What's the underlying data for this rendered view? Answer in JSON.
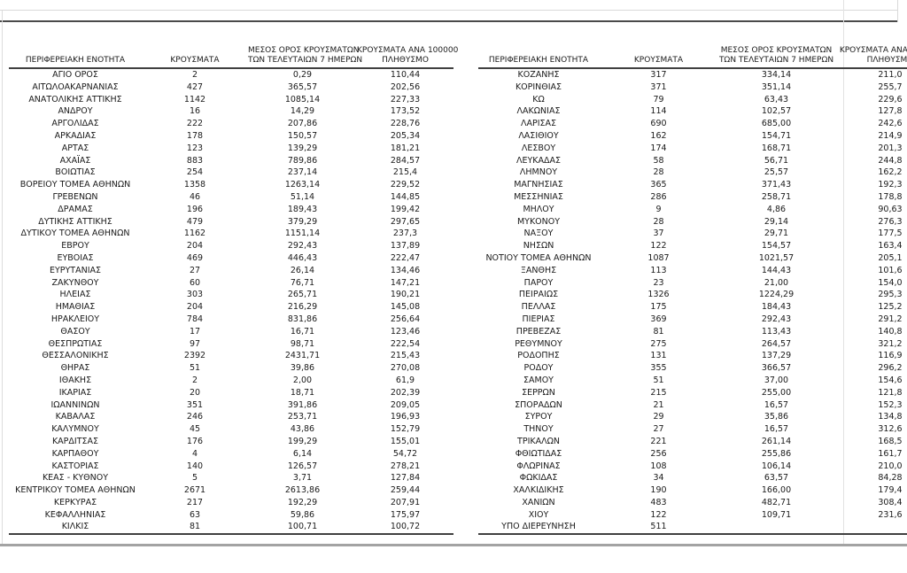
{
  "page": {
    "background": "#ffffff",
    "text_color": "#1a1a1a",
    "dark_rule_color": "#4a4a4a",
    "light_rule_color": "#d9d9d9",
    "bottom_bar_color": "#a3a3a3"
  },
  "headers": {
    "region": "ΠΕΡΙΦΕΡΕΙΑΚΗ ΕΝΟΤΗΤΑ",
    "cases": "ΚΡΟΥΣΜΑΤΑ",
    "avg7_line1": "ΜΕΣΟΣ ΟΡΟΣ ΚΡΟΥΣΜΑΤΩΝ",
    "avg7_line2": "ΤΩΝ ΤΕΛΕΥΤΑΙΩΝ 7 ΗΜΕΡΩΝ",
    "per100k_line1": "ΚΡΟΥΣΜΑΤΑ ΑΝΑ 100000",
    "per100k_line2": "ΠΛΗΘΥΣΜΟ"
  },
  "left_table": {
    "rows": [
      [
        "ΑΓΙΟ ΟΡΟΣ",
        "2",
        "0,29",
        "110,44"
      ],
      [
        "ΑΙΤΩΛΟΑΚΑΡΝΑΝΙΑΣ",
        "427",
        "365,57",
        "202,56"
      ],
      [
        "ΑΝΑΤΟΛΙΚΗΣ ΑΤΤΙΚΗΣ",
        "1142",
        "1085,14",
        "227,33"
      ],
      [
        "ΑΝΔΡΟΥ",
        "16",
        "14,29",
        "173,52"
      ],
      [
        "ΑΡΓΟΛΙΔΑΣ",
        "222",
        "207,86",
        "228,76"
      ],
      [
        "ΑΡΚΑΔΙΑΣ",
        "178",
        "150,57",
        "205,34"
      ],
      [
        "ΑΡΤΑΣ",
        "123",
        "139,29",
        "181,21"
      ],
      [
        "ΑΧΑΪΑΣ",
        "883",
        "789,86",
        "284,57"
      ],
      [
        "ΒΟΙΩΤΙΑΣ",
        "254",
        "237,14",
        "215,4"
      ],
      [
        "ΒΟΡΕΙΟΥ ΤΟΜΕΑ ΑΘΗΝΩΝ",
        "1358",
        "1263,14",
        "229,52"
      ],
      [
        "ΓΡΕΒΕΝΩΝ",
        "46",
        "51,14",
        "144,85"
      ],
      [
        "ΔΡΑΜΑΣ",
        "196",
        "189,43",
        "199,42"
      ],
      [
        "ΔΥΤΙΚΗΣ ΑΤΤΙΚΗΣ",
        "479",
        "379,29",
        "297,65"
      ],
      [
        "ΔΥΤΙΚΟΥ ΤΟΜΕΑ ΑΘΗΝΩΝ",
        "1162",
        "1151,14",
        "237,3"
      ],
      [
        "ΕΒΡΟΥ",
        "204",
        "292,43",
        "137,89"
      ],
      [
        "ΕΥΒΟΙΑΣ",
        "469",
        "446,43",
        "222,47"
      ],
      [
        "ΕΥΡΥΤΑΝΙΑΣ",
        "27",
        "26,14",
        "134,46"
      ],
      [
        "ΖΑΚΥΝΘΟΥ",
        "60",
        "76,71",
        "147,21"
      ],
      [
        "ΗΛΕΙΑΣ",
        "303",
        "265,71",
        "190,21"
      ],
      [
        "ΗΜΑΘΙΑΣ",
        "204",
        "216,29",
        "145,08"
      ],
      [
        "ΗΡΑΚΛΕΙΟΥ",
        "784",
        "831,86",
        "256,64"
      ],
      [
        "ΘΑΣΟΥ",
        "17",
        "16,71",
        "123,46"
      ],
      [
        "ΘΕΣΠΡΩΤΙΑΣ",
        "97",
        "98,71",
        "222,54"
      ],
      [
        "ΘΕΣΣΑΛΟΝΙΚΗΣ",
        "2392",
        "2431,71",
        "215,43"
      ],
      [
        "ΘΗΡΑΣ",
        "51",
        "39,86",
        "270,08"
      ],
      [
        "ΙΘΑΚΗΣ",
        "2",
        "2,00",
        "61,9"
      ],
      [
        "ΙΚΑΡΙΑΣ",
        "20",
        "18,71",
        "202,39"
      ],
      [
        "ΙΩΑΝΝΙΝΩΝ",
        "351",
        "391,86",
        "209,05"
      ],
      [
        "ΚΑΒΑΛΑΣ",
        "246",
        "253,71",
        "196,93"
      ],
      [
        "ΚΑΛΥΜΝΟΥ",
        "45",
        "43,86",
        "152,79"
      ],
      [
        "ΚΑΡΔΙΤΣΑΣ",
        "176",
        "199,29",
        "155,01"
      ],
      [
        "ΚΑΡΠΑΘΟΥ",
        "4",
        "6,14",
        "54,72"
      ],
      [
        "ΚΑΣΤΟΡΙΑΣ",
        "140",
        "126,57",
        "278,21"
      ],
      [
        "ΚΕΑΣ - ΚΥΘΝΟΥ",
        "5",
        "3,71",
        "127,84"
      ],
      [
        "ΚΕΝΤΡΙΚΟΥ ΤΟΜΕΑ ΑΘΗΝΩΝ",
        "2671",
        "2613,86",
        "259,44"
      ],
      [
        "ΚΕΡΚΥΡΑΣ",
        "217",
        "192,29",
        "207,91"
      ],
      [
        "ΚΕΦΑΛΛΗΝΙΑΣ",
        "63",
        "59,86",
        "175,97"
      ],
      [
        "ΚΙΛΚΙΣ",
        "81",
        "100,71",
        "100,72"
      ]
    ]
  },
  "right_table": {
    "rows": [
      [
        "ΚΟΖΑΝΗΣ",
        "317",
        "334,14",
        "211,0"
      ],
      [
        "ΚΟΡΙΝΘΙΑΣ",
        "371",
        "351,14",
        "255,7"
      ],
      [
        "ΚΩ",
        "79",
        "63,43",
        "229,6"
      ],
      [
        "ΛΑΚΩΝΙΑΣ",
        "114",
        "102,57",
        "127,8"
      ],
      [
        "ΛΑΡΙΣΑΣ",
        "690",
        "685,00",
        "242,6"
      ],
      [
        "ΛΑΣΙΘΙΟΥ",
        "162",
        "154,71",
        "214,9"
      ],
      [
        "ΛΕΣΒΟΥ",
        "174",
        "168,71",
        "201,3"
      ],
      [
        "ΛΕΥΚΑΔΑΣ",
        "58",
        "56,71",
        "244,8"
      ],
      [
        "ΛΗΜΝΟΥ",
        "28",
        "25,57",
        "162,2"
      ],
      [
        "ΜΑΓΝΗΣΙΑΣ",
        "365",
        "371,43",
        "192,3"
      ],
      [
        "ΜΕΣΣΗΝΙΑΣ",
        "286",
        "258,71",
        "178,8"
      ],
      [
        "ΜΗΛΟΥ",
        "9",
        "4,86",
        "90,63"
      ],
      [
        "ΜΥΚΟΝΟΥ",
        "28",
        "29,14",
        "276,3"
      ],
      [
        "ΝΑΞΟΥ",
        "37",
        "29,71",
        "177,5"
      ],
      [
        "ΝΗΣΩΝ",
        "122",
        "154,57",
        "163,4"
      ],
      [
        "ΝΟΤΙΟΥ ΤΟΜΕΑ ΑΘΗΝΩΝ",
        "1087",
        "1021,57",
        "205,1"
      ],
      [
        "ΞΑΝΘΗΣ",
        "113",
        "144,43",
        "101,6"
      ],
      [
        "ΠΑΡΟΥ",
        "23",
        "21,00",
        "154,0"
      ],
      [
        "ΠΕΙΡΑΙΩΣ",
        "1326",
        "1224,29",
        "295,3"
      ],
      [
        "ΠΕΛΛΑΣ",
        "175",
        "184,43",
        "125,2"
      ],
      [
        "ΠΙΕΡΙΑΣ",
        "369",
        "292,43",
        "291,2"
      ],
      [
        "ΠΡΕΒΕΖΑΣ",
        "81",
        "113,43",
        "140,8"
      ],
      [
        "ΡΕΘΥΜΝΟΥ",
        "275",
        "264,57",
        "321,2"
      ],
      [
        "ΡΟΔΟΠΗΣ",
        "131",
        "137,29",
        "116,9"
      ],
      [
        "ΡΟΔΟΥ",
        "355",
        "366,57",
        "296,2"
      ],
      [
        "ΣΑΜΟΥ",
        "51",
        "37,00",
        "154,6"
      ],
      [
        "ΣΕΡΡΩΝ",
        "215",
        "255,00",
        "121,8"
      ],
      [
        "ΣΠΟΡΑΔΩΝ",
        "21",
        "16,57",
        "152,3"
      ],
      [
        "ΣΥΡΟΥ",
        "29",
        "35,86",
        "134,8"
      ],
      [
        "ΤΗΝΟΥ",
        "27",
        "16,57",
        "312,6"
      ],
      [
        "ΤΡΙΚΑΛΩΝ",
        "221",
        "261,14",
        "168,5"
      ],
      [
        "ΦΘΙΩΤΙΔΑΣ",
        "256",
        "255,86",
        "161,7"
      ],
      [
        "ΦΛΩΡΙΝΑΣ",
        "108",
        "106,14",
        "210,0"
      ],
      [
        "ΦΩΚΙΔΑΣ",
        "34",
        "63,57",
        "84,28"
      ],
      [
        "ΧΑΛΚΙΔΙΚΗΣ",
        "190",
        "166,00",
        "179,4"
      ],
      [
        "ΧΑΝΙΩΝ",
        "483",
        "482,71",
        "308,4"
      ],
      [
        "ΧΙΟΥ",
        "122",
        "109,71",
        "231,6"
      ],
      [
        "ΥΠΟ ΔΙΕΡΕΥΝΗΣΗ",
        "511",
        "",
        ""
      ]
    ]
  }
}
